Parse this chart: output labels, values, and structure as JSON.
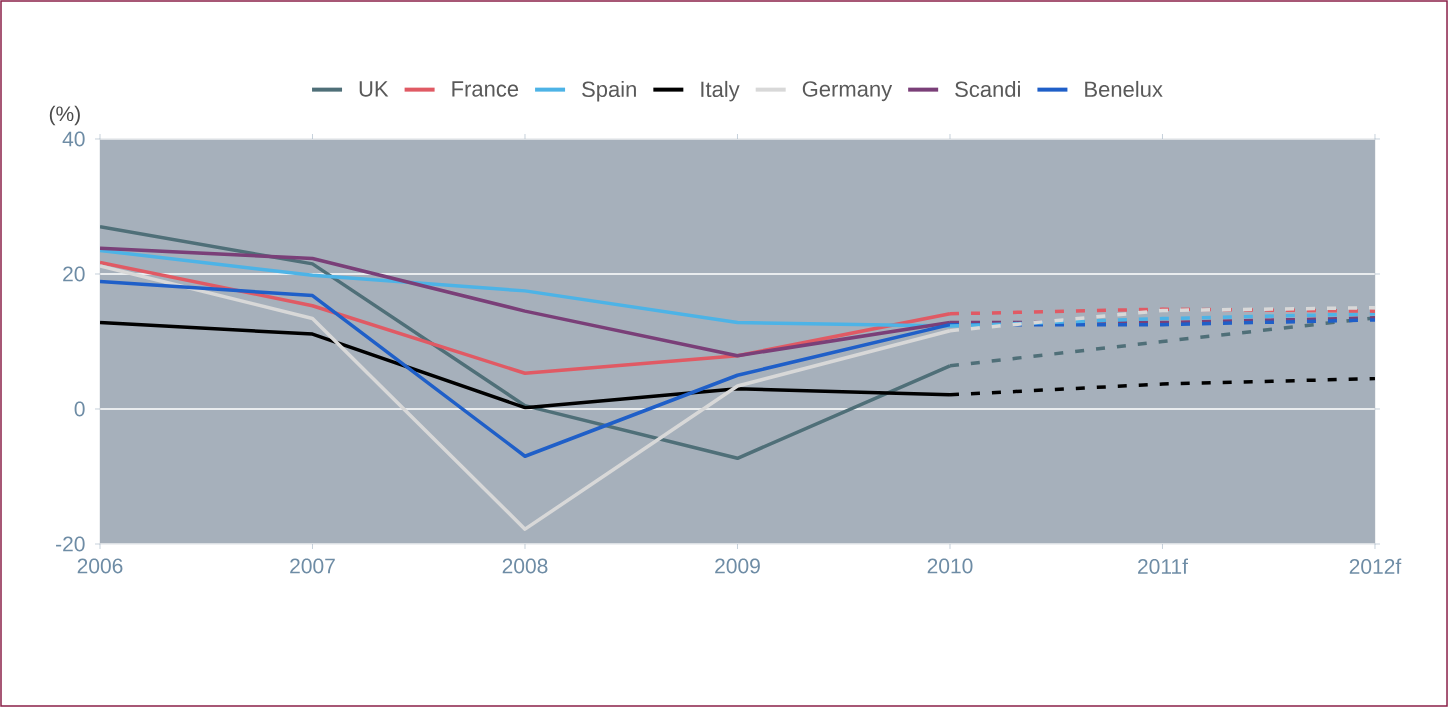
{
  "chart_data": {
    "type": "line",
    "ylabel": "(%)",
    "categories": [
      "2006",
      "2007",
      "2008",
      "2009",
      "2010",
      "2011f",
      "2012f"
    ],
    "ylim": [
      -20,
      40
    ],
    "yticks": [
      -20,
      0,
      20,
      40
    ],
    "grid": "y",
    "legend": "top",
    "series": [
      {
        "name": "UK",
        "color": "#4f6f78",
        "line_style": "solid",
        "values": [
          27,
          21.5,
          0.5,
          -7.3,
          6.4,
          null,
          null
        ]
      },
      {
        "name": "France",
        "color": "#e05a64",
        "line_style": "solid",
        "values": [
          21.7,
          15.3,
          5.3,
          7.9,
          14.1,
          null,
          null
        ]
      },
      {
        "name": "Spain",
        "color": "#4db3e6",
        "line_style": "solid",
        "values": [
          23.5,
          19.8,
          17.5,
          12.8,
          12.3,
          null,
          null
        ]
      },
      {
        "name": "Italy",
        "color": "#000000",
        "line_style": "solid",
        "values": [
          12.8,
          11.1,
          0.2,
          3,
          2.1,
          null,
          null
        ]
      },
      {
        "name": "Germany",
        "color": "#d8d8d8",
        "line_style": "solid",
        "values": [
          21.2,
          13.4,
          -17.8,
          3.4,
          11.6,
          null,
          null
        ]
      },
      {
        "name": "Scandi",
        "color": "#7a3f78",
        "line_style": "solid",
        "values": [
          23.8,
          22.3,
          14.5,
          7.9,
          12.8,
          null,
          null
        ]
      },
      {
        "name": "Benelux",
        "color": "#1f5fc8",
        "line_style": "solid",
        "values": [
          18.9,
          16.8,
          -7,
          5,
          12.5,
          null,
          null
        ]
      },
      {
        "color": "#4f6f78",
        "line_style": "dashed",
        "values": [
          null,
          null,
          null,
          null,
          6.4,
          10,
          13.5
        ]
      },
      {
        "color": "#000000",
        "line_style": "dashed",
        "values": [
          null,
          null,
          null,
          null,
          2.1,
          3.7,
          4.5
        ]
      },
      {
        "color": "#7a3f78",
        "line_style": "dashed",
        "values": [
          null,
          null,
          null,
          null,
          12.8,
          12.8,
          13.5
        ]
      },
      {
        "color": "#1f5fc8",
        "line_style": "dashed",
        "values": [
          null,
          null,
          null,
          null,
          12.5,
          12.5,
          13.2
        ]
      },
      {
        "color": "#4db3e6",
        "line_style": "dashed",
        "values": [
          null,
          null,
          null,
          null,
          12.3,
          13.4,
          14.1
        ]
      },
      {
        "color": "#e05a64",
        "line_style": "dashed",
        "values": [
          null,
          null,
          null,
          null,
          14.1,
          14.8,
          14.5
        ]
      },
      {
        "color": "#d8d8d8",
        "line_style": "dashed",
        "values": [
          null,
          null,
          null,
          null,
          11.6,
          14.6,
          15
        ]
      }
    ]
  }
}
